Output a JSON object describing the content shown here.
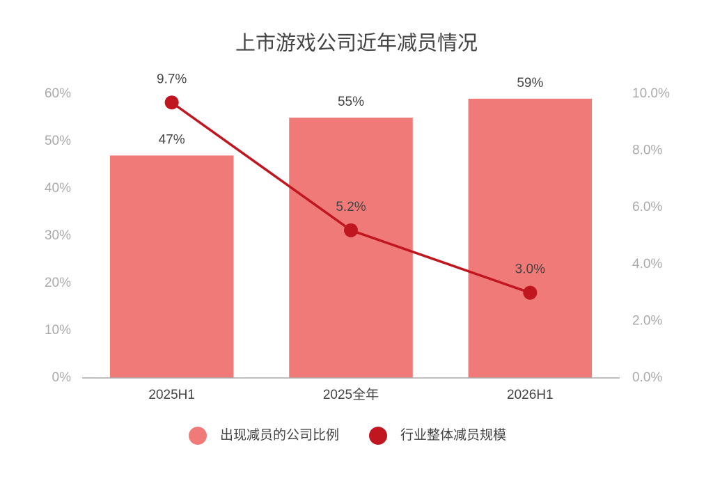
{
  "chart_data": {
    "type": "bar",
    "title": "上市游戏公司近年减员情况",
    "categories": [
      "2025H1",
      "2025全年",
      "2026H1"
    ],
    "series": [
      {
        "name": "出现减员的公司比例",
        "color": "#f07a78",
        "type": "bar",
        "values": [
          47,
          55,
          59
        ],
        "value_labels": [
          "47%",
          "55%",
          "59%"
        ]
      },
      {
        "name": "行业整体减员规模",
        "color": "#c0161f",
        "type": "line",
        "axis": "y2",
        "values": [
          9.7,
          5.2,
          3.0
        ],
        "value_labels": [
          "9.7%",
          "5.2%",
          "3.0%"
        ]
      }
    ],
    "ylim": [
      0,
      60
    ],
    "yticks": [
      {
        "value": 0,
        "label": "0%"
      },
      {
        "value": 10,
        "label": "10%"
      },
      {
        "value": 20,
        "label": "20%"
      },
      {
        "value": 30,
        "label": "30%"
      },
      {
        "value": 40,
        "label": "40%"
      },
      {
        "value": 50,
        "label": "50%"
      },
      {
        "value": 60,
        "label": "60%"
      }
    ],
    "y2lim": [
      0,
      10
    ],
    "y2ticks": [
      {
        "value": 0,
        "label": "0.0%"
      },
      {
        "value": 2,
        "label": "2.0%"
      },
      {
        "value": 4,
        "label": "4.0%"
      },
      {
        "value": 6,
        "label": "6.0%"
      },
      {
        "value": 8,
        "label": "8.0%"
      },
      {
        "value": 10,
        "label": "10.0%"
      }
    ],
    "legend": "bottom",
    "grid": false
  }
}
